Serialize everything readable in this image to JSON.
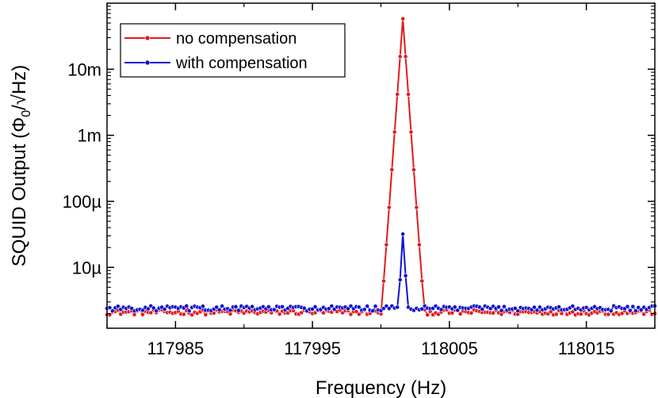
{
  "chart_data": {
    "type": "line",
    "xlabel": "Frequency (Hz)",
    "ylabel": {
      "prefix": "SQUID Output (Φ",
      "sub": "0",
      "suffix": "/√Hz)"
    },
    "xlim": [
      117980,
      118020
    ],
    "ylim": [
      1.2e-06,
      0.1
    ],
    "yscale": "log",
    "x_ticks": [
      117985,
      117995,
      118005,
      118015
    ],
    "x_tick_labels": [
      "117985",
      "117995",
      "118005",
      "118015"
    ],
    "y_ticks": [
      1e-05,
      0.0001,
      0.001,
      0.01
    ],
    "y_tick_labels": [
      "10µ",
      "100µ",
      "1m",
      "10m"
    ],
    "legend_position": "top-left",
    "grid": false,
    "x_step": 0.2,
    "series": [
      {
        "name": "no compensation",
        "color": "#e31a1c",
        "baseline": 2.1e-06,
        "peak_center": 118001.6,
        "peak_value": 0.058,
        "peak_width": 0.35
      },
      {
        "name": "with compensation",
        "color": "#1010d0",
        "baseline": 2.4e-06,
        "spike": [
          {
            "x": 118001.2,
            "y": 2.5e-06
          },
          {
            "x": 118001.4,
            "y": 6.5e-06
          },
          {
            "x": 118001.6,
            "y": 3.2e-05
          },
          {
            "x": 118001.8,
            "y": 7.5e-06
          },
          {
            "x": 118002.0,
            "y": 2.5e-06
          }
        ]
      }
    ]
  }
}
